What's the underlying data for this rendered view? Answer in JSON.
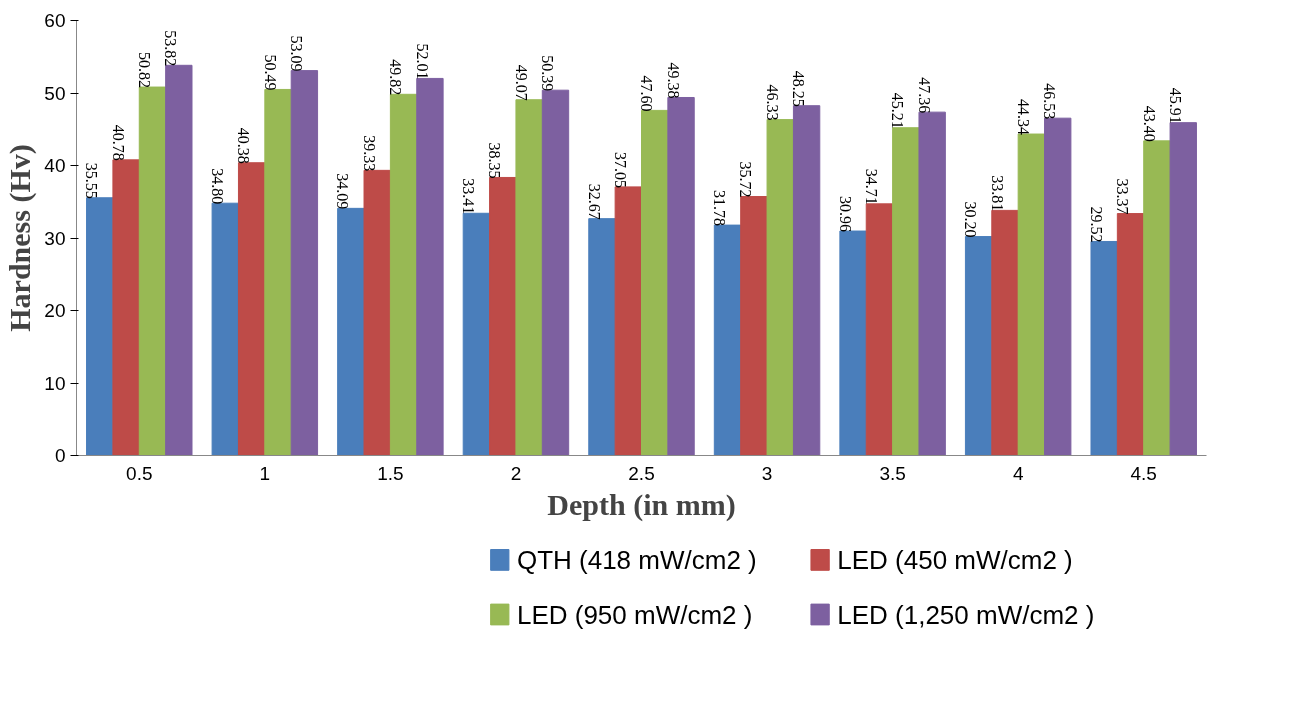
{
  "chart_data": {
    "type": "bar",
    "xlabel": "Depth (in mm)",
    "ylabel": "Hardness (Hv)",
    "categories": [
      "0.5",
      "1",
      "1.5",
      "2",
      "2.5",
      "3",
      "3.5",
      "4",
      "4.5"
    ],
    "series": [
      {
        "name": "QTH (418 mW/cm2 )",
        "color": "#4a7ebb",
        "values": [
          35.55,
          34.8,
          34.09,
          33.41,
          32.67,
          31.78,
          30.96,
          30.2,
          29.52
        ],
        "value_labels": [
          "35.55",
          "34.80",
          "34.09",
          "33.41",
          "32.67",
          "31.78",
          "30.96",
          "30.20",
          "29.52"
        ]
      },
      {
        "name": "LED (450 mW/cm2 )",
        "color": "#be4b48",
        "values": [
          40.78,
          40.38,
          39.33,
          38.35,
          37.05,
          35.72,
          34.71,
          33.81,
          33.37
        ],
        "value_labels": [
          "40.78",
          "40.38",
          "39.33",
          "38.35",
          "37.05",
          "35.72",
          "34.71",
          "33.81",
          "33.37"
        ]
      },
      {
        "name": "LED (950 mW/cm2 )",
        "color": "#98b954",
        "values": [
          50.82,
          50.49,
          49.82,
          49.07,
          47.6,
          46.33,
          45.21,
          44.34,
          43.4
        ],
        "value_labels": [
          "50.82",
          "50.49",
          "49.82",
          "49.07",
          "47.60",
          "46.33",
          "45.21",
          "44.34",
          "43.40"
        ]
      },
      {
        "name": "LED (1,250 mW/cm2 )",
        "color": "#7d60a0",
        "values": [
          53.82,
          53.09,
          52.01,
          50.39,
          49.38,
          48.25,
          47.36,
          46.53,
          45.91
        ],
        "value_labels": [
          "53.82",
          "53.09",
          "52.01",
          "50.39",
          "49.38",
          "48.25",
          "47.36",
          "46.53",
          "45.91"
        ]
      }
    ],
    "ylim": [
      0,
      60
    ],
    "yticks": [
      0,
      10,
      20,
      30,
      40,
      50,
      60
    ],
    "grid": false,
    "legend": "bottom"
  }
}
